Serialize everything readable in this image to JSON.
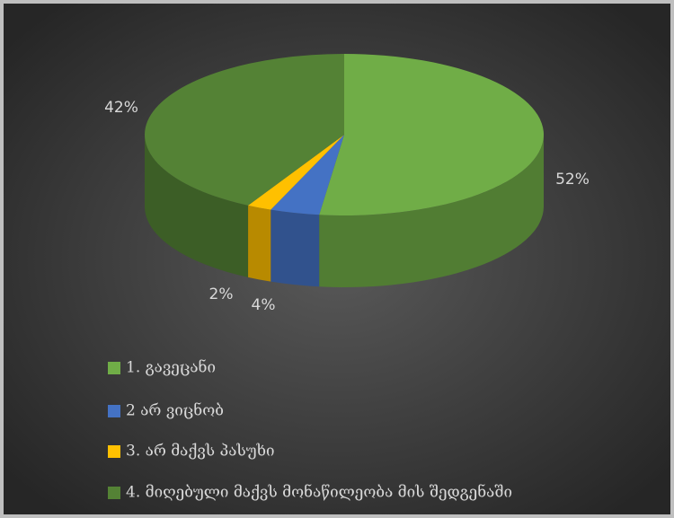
{
  "chart_data": {
    "type": "pie3d",
    "categories": [
      "1. გავეცანი",
      "2 არ ვიცნობ",
      "3. არ მაქვს პასუხი",
      "4. მიღებული მაქვს მონაწილეობა მის შედგენაში"
    ],
    "values": [
      52,
      4,
      2,
      42
    ],
    "value_labels": [
      "52%",
      "4%",
      "2%",
      "42%"
    ],
    "colors": [
      "#70ad47",
      "#4472c4",
      "#ffc000",
      "#548235"
    ],
    "legend": "bottom"
  }
}
